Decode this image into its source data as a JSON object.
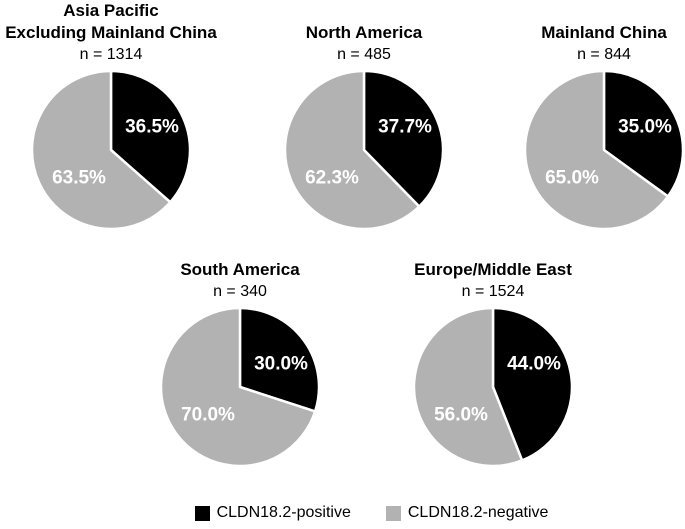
{
  "legend": {
    "items": [
      {
        "label": "CLDN18.2-positive",
        "color": "#000000"
      },
      {
        "label": "CLDN18.2-negative",
        "color": "#b2b2b2"
      }
    ]
  },
  "chart_data": [
    {
      "type": "pie",
      "title_lines": [
        "Asia Pacific",
        "Excluding Mainland China"
      ],
      "n_label": "n = 1314",
      "start_angle_deg": 0,
      "direction": "clockwise",
      "label_color": "#ffffff",
      "slices": [
        {
          "name": "CLDN18.2-positive",
          "value_pct": 36.5,
          "label": "36.5%",
          "color": "#000000"
        },
        {
          "name": "CLDN18.2-negative",
          "value_pct": 63.5,
          "label": "63.5%",
          "color": "#b2b2b2"
        }
      ]
    },
    {
      "type": "pie",
      "title_lines": [
        "North America"
      ],
      "n_label": "n = 485",
      "start_angle_deg": 0,
      "direction": "clockwise",
      "label_color": "#ffffff",
      "slices": [
        {
          "name": "CLDN18.2-positive",
          "value_pct": 37.7,
          "label": "37.7%",
          "color": "#000000"
        },
        {
          "name": "CLDN18.2-negative",
          "value_pct": 62.3,
          "label": "62.3%",
          "color": "#b2b2b2"
        }
      ]
    },
    {
      "type": "pie",
      "title_lines": [
        "Mainland China"
      ],
      "n_label": "n = 844",
      "start_angle_deg": 0,
      "direction": "clockwise",
      "label_color": "#ffffff",
      "slices": [
        {
          "name": "CLDN18.2-positive",
          "value_pct": 35.0,
          "label": "35.0%",
          "color": "#000000"
        },
        {
          "name": "CLDN18.2-negative",
          "value_pct": 65.0,
          "label": "65.0%",
          "color": "#b2b2b2"
        }
      ]
    },
    {
      "type": "pie",
      "title_lines": [
        "South America"
      ],
      "n_label": "n = 340",
      "start_angle_deg": 0,
      "direction": "clockwise",
      "label_color": "#ffffff",
      "slices": [
        {
          "name": "CLDN18.2-positive",
          "value_pct": 30.0,
          "label": "30.0%",
          "color": "#000000"
        },
        {
          "name": "CLDN18.2-negative",
          "value_pct": 70.0,
          "label": "70.0%",
          "color": "#b2b2b2"
        }
      ]
    },
    {
      "type": "pie",
      "title_lines": [
        "Europe/Middle East"
      ],
      "n_label": "n = 1524",
      "start_angle_deg": 0,
      "direction": "clockwise",
      "label_color": "#ffffff",
      "slices": [
        {
          "name": "CLDN18.2-positive",
          "value_pct": 44.0,
          "label": "44.0%",
          "color": "#000000"
        },
        {
          "name": "CLDN18.2-negative",
          "value_pct": 56.0,
          "label": "56.0%",
          "color": "#b2b2b2"
        }
      ]
    }
  ]
}
